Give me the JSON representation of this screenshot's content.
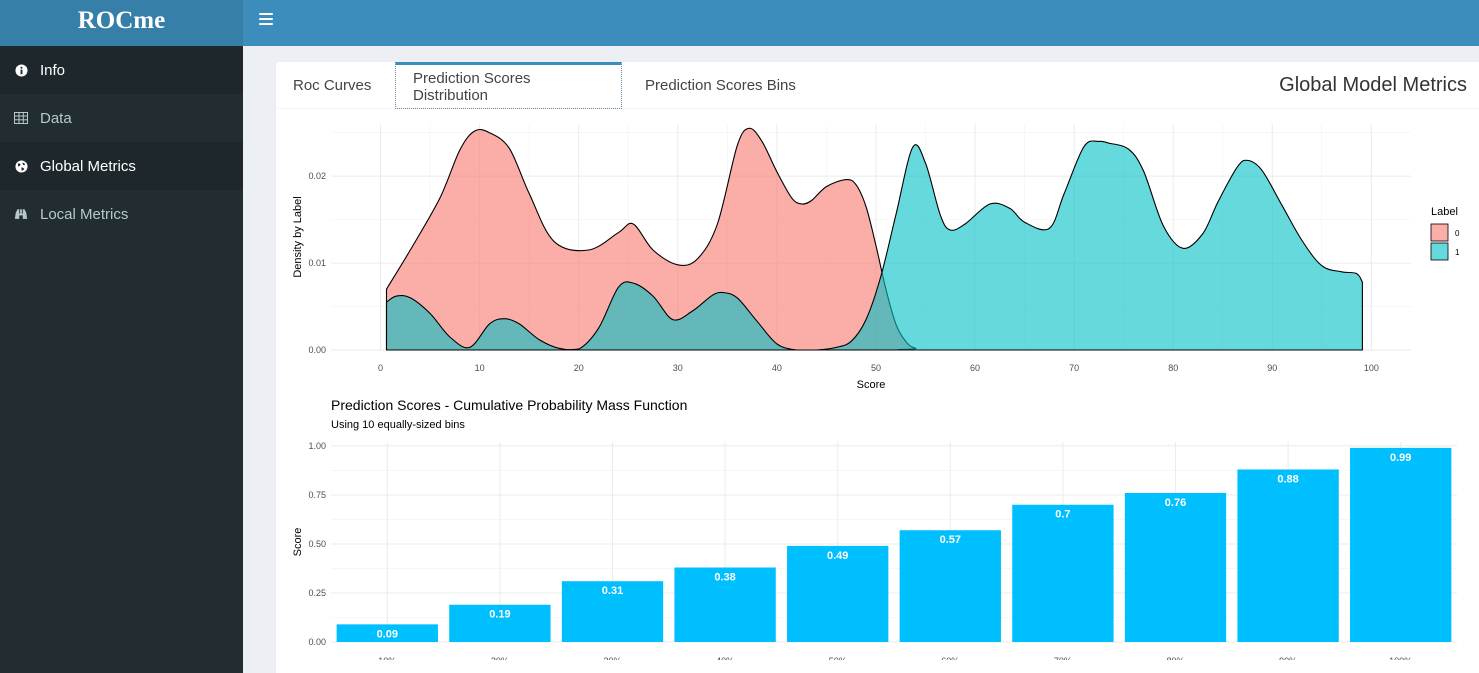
{
  "app": {
    "title": "ROCme"
  },
  "sidebar": {
    "items": [
      {
        "label": "Info",
        "icon": "info-circle-icon"
      },
      {
        "label": "Data",
        "icon": "table-icon"
      },
      {
        "label": "Global Metrics",
        "icon": "globe-icon"
      },
      {
        "label": "Local Metrics",
        "icon": "binoculars-icon"
      }
    ]
  },
  "tabs": [
    {
      "label": "Roc Curves"
    },
    {
      "label": "Prediction Scores Distribution"
    },
    {
      "label": "Prediction Scores Bins"
    }
  ],
  "panel": {
    "title": "Global Model Metrics"
  },
  "colors": {
    "label0": "#f8766d",
    "label1": "#00bfc4",
    "bars": "#00bfff",
    "topbar": "#3c8dbc",
    "sidebar": "#222d32"
  },
  "chart_data": [
    {
      "type": "area",
      "title": "",
      "xlabel": "Score",
      "ylabel": "Density by Label",
      "xlim": [
        -5,
        104
      ],
      "ylim": [
        0,
        0.026
      ],
      "x_ticks": [
        0,
        10,
        20,
        30,
        40,
        50,
        60,
        70,
        80,
        90,
        100
      ],
      "y_ticks": [
        0,
        0.01,
        0.02
      ],
      "y_tick_labels": [
        "0.00",
        "0.01",
        "0.02"
      ],
      "legend": {
        "title": "Label",
        "entries": [
          "0",
          "1"
        ],
        "position": "right"
      },
      "grid": true,
      "series": [
        {
          "name": "0",
          "points": [
            [
              0.6,
              0.007
            ],
            [
              3,
              0.0115
            ],
            [
              6,
              0.0175
            ],
            [
              8,
              0.023
            ],
            [
              9.5,
              0.0252
            ],
            [
              11,
              0.025
            ],
            [
              13,
              0.0232
            ],
            [
              15,
              0.018
            ],
            [
              17.5,
              0.0125
            ],
            [
              21,
              0.0115
            ],
            [
              24,
              0.0135
            ],
            [
              25.5,
              0.0145
            ],
            [
              27.5,
              0.0115
            ],
            [
              30,
              0.0098
            ],
            [
              32,
              0.0105
            ],
            [
              34,
              0.0145
            ],
            [
              36,
              0.0235
            ],
            [
              37.2,
              0.0255
            ],
            [
              38.5,
              0.024
            ],
            [
              40,
              0.0205
            ],
            [
              41.5,
              0.0175
            ],
            [
              42.5,
              0.0168
            ],
            [
              43.5,
              0.0172
            ],
            [
              45,
              0.0188
            ],
            [
              47,
              0.0196
            ],
            [
              48,
              0.019
            ],
            [
              49,
              0.0165
            ],
            [
              50,
              0.012
            ],
            [
              51,
              0.007
            ],
            [
              52,
              0.003
            ],
            [
              53,
              0.001
            ],
            [
              54,
              0.0002
            ],
            [
              56,
              0.0
            ],
            [
              99,
              0.0
            ]
          ]
        },
        {
          "name": "1",
          "points": [
            [
              0.6,
              0.0055
            ],
            [
              1.6,
              0.0062
            ],
            [
              3,
              0.006
            ],
            [
              5,
              0.0042
            ],
            [
              7,
              0.0015
            ],
            [
              9,
              0.0003
            ],
            [
              11,
              0.003
            ],
            [
              12.5,
              0.0036
            ],
            [
              14,
              0.003
            ],
            [
              16,
              0.0012
            ],
            [
              18,
              0.0002
            ],
            [
              20,
              0.0001
            ],
            [
              22,
              0.0025
            ],
            [
              24,
              0.0072
            ],
            [
              25.5,
              0.0077
            ],
            [
              27.5,
              0.0062
            ],
            [
              29.5,
              0.0035
            ],
            [
              31.5,
              0.0045
            ],
            [
              33.5,
              0.0063
            ],
            [
              34.6,
              0.0066
            ],
            [
              36,
              0.006
            ],
            [
              38,
              0.0033
            ],
            [
              40,
              0.0007
            ],
            [
              42,
              0.0
            ],
            [
              44,
              0.0
            ],
            [
              46,
              0.0003
            ],
            [
              47.5,
              0.001
            ],
            [
              49,
              0.0035
            ],
            [
              50.5,
              0.0085
            ],
            [
              52,
              0.0155
            ],
            [
              53.7,
              0.0233
            ],
            [
              55,
              0.0215
            ],
            [
              56.5,
              0.0155
            ],
            [
              57.5,
              0.0138
            ],
            [
              59,
              0.0145
            ],
            [
              61.5,
              0.0168
            ],
            [
              63.5,
              0.0163
            ],
            [
              65,
              0.0147
            ],
            [
              67.5,
              0.014
            ],
            [
              69,
              0.018
            ],
            [
              71,
              0.0234
            ],
            [
              72.5,
              0.024
            ],
            [
              73.5,
              0.0238
            ],
            [
              75.5,
              0.0231
            ],
            [
              77,
              0.0206
            ],
            [
              79,
              0.0143
            ],
            [
              81,
              0.0117
            ],
            [
              83,
              0.0134
            ],
            [
              84.5,
              0.017
            ],
            [
              86.5,
              0.0211
            ],
            [
              87.6,
              0.0218
            ],
            [
              89,
              0.0206
            ],
            [
              91,
              0.0166
            ],
            [
              93,
              0.0126
            ],
            [
              95,
              0.0097
            ],
            [
              97,
              0.009
            ],
            [
              98.5,
              0.0088
            ],
            [
              99.1,
              0.0078
            ]
          ]
        }
      ]
    },
    {
      "type": "bar",
      "title": "Prediction Scores - Cumulative Probability Mass Function",
      "subtitle": "Using 10 equally-sized bins",
      "xlabel": "",
      "ylabel": "Score",
      "ylim": [
        0,
        1.02
      ],
      "y_ticks": [
        0,
        0.25,
        0.5,
        0.75,
        1
      ],
      "y_tick_labels": [
        "0.00",
        "0.25",
        "0.50",
        "0.75",
        "1.00"
      ],
      "categories": [
        "10%",
        "20%",
        "30%",
        "40%",
        "50%",
        "60%",
        "70%",
        "80%",
        "90%",
        "100%"
      ],
      "values": [
        0.09,
        0.19,
        0.31,
        0.38,
        0.49,
        0.57,
        0.7,
        0.76,
        0.88,
        0.99
      ],
      "data_labels": [
        "0.09",
        "0.19",
        "0.31",
        "0.38",
        "0.49",
        "0.57",
        "0.7",
        "0.76",
        "0.88",
        "0.99"
      ],
      "grid": true
    }
  ]
}
